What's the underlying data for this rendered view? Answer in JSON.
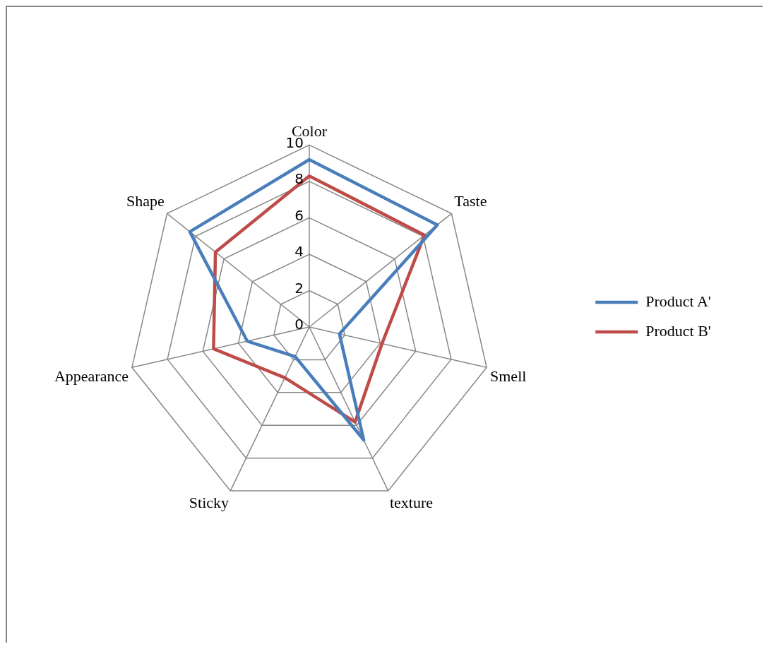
{
  "chart_data": {
    "type": "radar",
    "categories": [
      "Color",
      "Taste",
      "Smell",
      "texture",
      "Sticky",
      "Appearance",
      "Shape"
    ],
    "series": [
      {
        "name": "Product A'",
        "color": "#4a7ebb",
        "values": [
          9.2,
          9.0,
          1.7,
          6.9,
          1.8,
          3.5,
          8.4
        ]
      },
      {
        "name": "Product B'",
        "color": "#be4b48",
        "values": [
          8.3,
          8.1,
          4.1,
          5.8,
          3.1,
          5.4,
          6.6
        ]
      }
    ],
    "ylim": [
      0,
      10
    ],
    "yticks": [
      0,
      2,
      4,
      6,
      8,
      10
    ],
    "grid": true,
    "legend": "right",
    "marker": "none",
    "line_style": "solid"
  }
}
